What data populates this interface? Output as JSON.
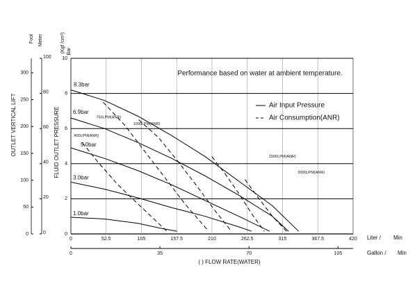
{
  "chart_data": {
    "type": "line",
    "annotation": "Performance based on water at ambient temperature.",
    "xlabel": "( ) FLOW RATE(WATER)",
    "xlim": [
      0,
      420
    ],
    "xticks": [
      0,
      52.5,
      105,
      157.5,
      210,
      262.5,
      315,
      367.5,
      420
    ],
    "x_unit": [
      "Liter /",
      "Min"
    ],
    "x2lim": [
      0,
      110.9
    ],
    "x2ticks": [
      0,
      35,
      70,
      105
    ],
    "x2_unit": [
      "Gallon /",
      "Min"
    ],
    "ylim": [
      0,
      10
    ],
    "yticks": [
      0,
      2,
      4,
      6,
      8,
      10
    ],
    "ylabel": "FLUID OUTLET PRESSURE",
    "y_unit": [
      "(Kgf /cm²)",
      "Bar"
    ],
    "meter_axis": {
      "label": "Meter",
      "lim": [
        0,
        100
      ],
      "ticks": [
        0,
        20,
        40,
        60,
        80,
        100
      ]
    },
    "foot_axis": {
      "label": "Foot",
      "lim": [
        0,
        327
      ],
      "ticks": [
        0,
        50,
        100,
        150,
        200,
        250,
        300
      ]
    },
    "outer_ylabel": "OUTLET VERTICAL LIFT",
    "grid": true,
    "legend": [
      {
        "label": "Air Input Pressure",
        "dashed": false
      },
      {
        "label": "Air Consumption(ANR)",
        "dashed": true
      }
    ],
    "series": [
      {
        "name": "8.3bar",
        "dashed": false,
        "color": "#000000",
        "x": [
          0,
          50,
          100,
          150,
          200,
          250,
          300,
          339
        ],
        "values": [
          8.2,
          7.6,
          6.7,
          5.6,
          4.4,
          3.0,
          1.6,
          0.15
        ]
      },
      {
        "name": "6.9bar",
        "dashed": false,
        "color": "#000000",
        "x": [
          0,
          50,
          100,
          150,
          200,
          250,
          300,
          324
        ],
        "values": [
          6.6,
          6.0,
          5.2,
          4.3,
          3.3,
          2.2,
          1.0,
          0.15
        ]
      },
      {
        "name": "5.0bar",
        "dashed": false,
        "color": "#000000",
        "x": [
          0,
          50,
          100,
          150,
          200,
          250,
          296
        ],
        "values": [
          4.9,
          4.3,
          3.6,
          2.8,
          1.9,
          1.0,
          0.15
        ]
      },
      {
        "name": "3.0bar",
        "dashed": false,
        "color": "#000000",
        "x": [
          0,
          50,
          100,
          150,
          200,
          250,
          269
        ],
        "values": [
          2.95,
          2.55,
          2.05,
          1.5,
          1.0,
          0.4,
          0.15
        ]
      },
      {
        "name": "1.0bar",
        "dashed": false,
        "color": "#000000",
        "x": [
          0,
          50,
          100,
          130,
          158
        ],
        "values": [
          0.95,
          0.85,
          0.6,
          0.35,
          0.15
        ]
      },
      {
        "name": "400LPM(ANR)",
        "dashed": true,
        "color": "#000000",
        "x": [
          17,
          40,
          70,
          100,
          125,
          143
        ],
        "values": [
          5.2,
          4.1,
          2.8,
          1.7,
          0.8,
          0.15
        ]
      },
      {
        "name": "750LPM(ANR)",
        "dashed": true,
        "color": "#000000",
        "x": [
          48,
          80,
          110,
          140,
          170,
          205
        ],
        "values": [
          7.5,
          6.2,
          4.7,
          3.2,
          1.7,
          0.15
        ]
      },
      {
        "name": "1000LPM(ANR)",
        "dashed": true,
        "color": "#000000",
        "x": [
          101,
          130,
          160,
          190,
          215,
          239
        ],
        "values": [
          6.5,
          5.5,
          4.1,
          2.6,
          1.3,
          0.15
        ]
      },
      {
        "name": "1500LPM(ANR)",
        "dashed": true,
        "color": "#000000",
        "x": [
          210,
          230,
          250,
          270,
          288
        ],
        "values": [
          4.4,
          3.4,
          2.3,
          1.1,
          0.15
        ]
      },
      {
        "name": "2000LPM(ANR)",
        "dashed": true,
        "color": "#000000",
        "x": [
          259,
          280,
          300,
          321
        ],
        "values": [
          3.1,
          2.0,
          1.0,
          0.15
        ]
      }
    ]
  }
}
